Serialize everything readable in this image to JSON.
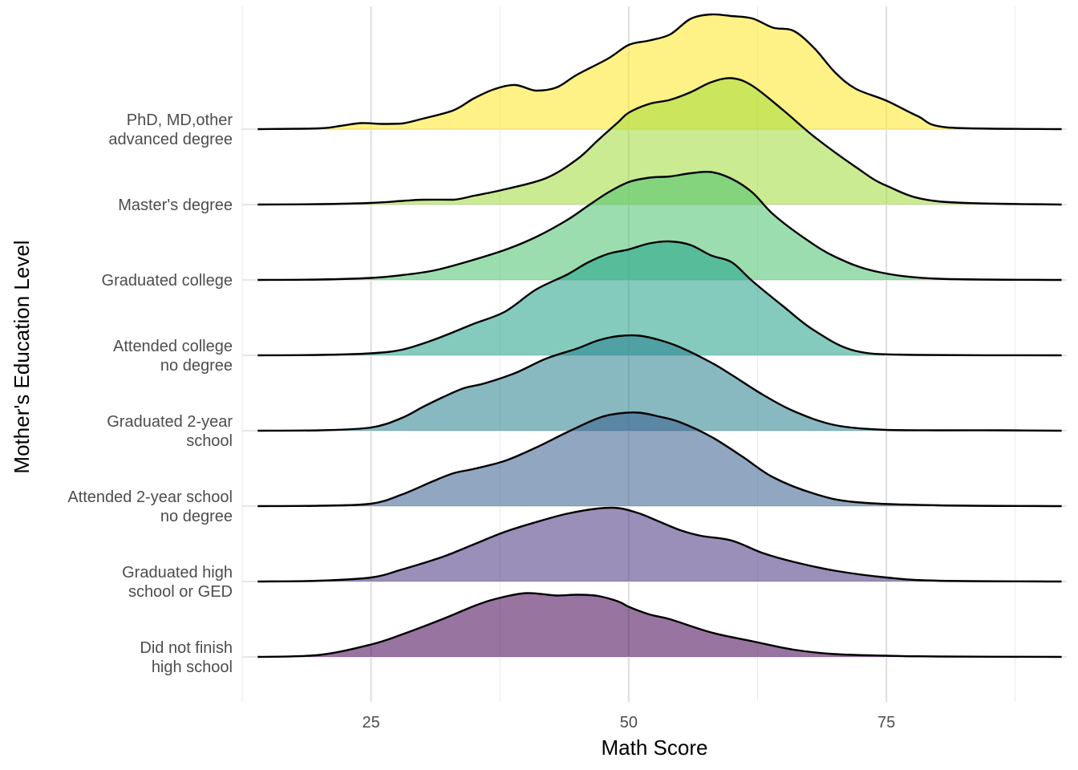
{
  "chart_data": {
    "type": "ridgeline",
    "title": "",
    "xlabel": "Math Score",
    "ylabel": "Mother's Education Level",
    "xlim": [
      12.5,
      92.5
    ],
    "x_ticks": [
      25,
      50,
      75
    ],
    "x_tick_labels": [
      "25",
      "50",
      "75"
    ],
    "grid": true,
    "legend": "none",
    "fill_opacity": 0.55,
    "categories": [
      "Did not finish\nhigh school",
      "Graduated high\nschool or GED",
      "Attended 2-year school\nno degree",
      "Graduated 2-year\nschool",
      "Attended college\nno degree",
      "Graduated college",
      "Master's degree",
      "PhD, MD,other\nadvanced degree"
    ],
    "series": [
      {
        "color": "#440154",
        "x": [
          14,
          20,
          25,
          28,
          32,
          35,
          37,
          40,
          43,
          45,
          47,
          49,
          50,
          52,
          54,
          58,
          62,
          66,
          70,
          75,
          80,
          92
        ],
        "density": [
          0,
          0.05,
          0.31,
          0.56,
          0.95,
          1.27,
          1.44,
          1.59,
          1.53,
          1.55,
          1.52,
          1.38,
          1.25,
          1.06,
          0.94,
          0.61,
          0.39,
          0.18,
          0.07,
          0.03,
          0.01,
          0
        ]
      },
      {
        "color": "#46337e",
        "x": [
          14,
          20,
          25,
          28,
          32,
          35,
          38,
          41,
          44,
          47,
          49,
          51,
          53,
          55,
          57,
          60,
          63,
          66,
          70,
          75,
          80,
          92
        ],
        "density": [
          0,
          0.02,
          0.1,
          0.3,
          0.62,
          0.93,
          1.24,
          1.48,
          1.69,
          1.82,
          1.83,
          1.7,
          1.49,
          1.28,
          1.14,
          1.02,
          0.71,
          0.49,
          0.27,
          0.1,
          0.02,
          0
        ]
      },
      {
        "color": "#365c8d",
        "x": [
          14,
          20,
          25,
          28,
          31,
          33,
          35,
          38,
          41,
          44,
          47,
          49,
          51,
          53,
          55,
          58,
          61,
          64,
          68,
          72,
          80,
          92
        ],
        "density": [
          0,
          0.01,
          0.06,
          0.29,
          0.62,
          0.82,
          0.93,
          1.13,
          1.46,
          1.84,
          2.19,
          2.31,
          2.33,
          2.23,
          2.09,
          1.73,
          1.24,
          0.72,
          0.31,
          0.1,
          0.02,
          0
        ]
      },
      {
        "color": "#277f8e",
        "x": [
          14,
          20,
          25,
          28,
          30,
          32,
          34,
          36,
          39,
          42,
          45,
          47,
          49,
          51,
          53,
          55,
          58,
          60,
          63,
          66,
          70,
          75,
          80,
          86,
          92
        ],
        "density": [
          0,
          0.01,
          0.08,
          0.32,
          0.59,
          0.84,
          1.06,
          1.18,
          1.44,
          1.8,
          2.05,
          2.25,
          2.36,
          2.37,
          2.26,
          2.08,
          1.7,
          1.39,
          0.9,
          0.49,
          0.14,
          0.02,
          0.01,
          0.01,
          0
        ]
      },
      {
        "color": "#1fa187",
        "x": [
          14,
          20,
          25,
          28,
          31,
          33,
          35,
          38,
          41,
          44,
          46,
          48,
          50,
          52,
          54,
          56,
          58,
          60,
          62,
          65,
          68,
          72,
          78,
          92
        ],
        "density": [
          0,
          0.01,
          0.05,
          0.14,
          0.38,
          0.58,
          0.79,
          1.09,
          1.64,
          2.01,
          2.31,
          2.53,
          2.64,
          2.79,
          2.84,
          2.75,
          2.49,
          2.32,
          1.85,
          1.22,
          0.62,
          0.11,
          0.01,
          0
        ]
      },
      {
        "color": "#4ac16d",
        "x": [
          14,
          20,
          25,
          28,
          31,
          34,
          38,
          41,
          44,
          46,
          48,
          50,
          52,
          54,
          56,
          58,
          60,
          62,
          64,
          67,
          70,
          74,
          80,
          92
        ],
        "density": [
          0,
          0.01,
          0.05,
          0.12,
          0.23,
          0.43,
          0.75,
          1.07,
          1.49,
          1.84,
          2.18,
          2.44,
          2.55,
          2.58,
          2.66,
          2.69,
          2.52,
          2.18,
          1.64,
          1.05,
          0.58,
          0.21,
          0.03,
          0
        ]
      },
      {
        "color": "#a0da39",
        "x": [
          14,
          20,
          25,
          28,
          30,
          33,
          35,
          38,
          42,
          45,
          47,
          49,
          50,
          52,
          54,
          56,
          58,
          60,
          62,
          65,
          68,
          72,
          75,
          80,
          92
        ],
        "density": [
          0,
          0.01,
          0.04,
          0.09,
          0.12,
          0.12,
          0.22,
          0.38,
          0.66,
          1.13,
          1.6,
          2.06,
          2.29,
          2.51,
          2.61,
          2.8,
          3.05,
          3.15,
          2.96,
          2.35,
          1.69,
          0.94,
          0.47,
          0.08,
          0
        ]
      },
      {
        "color": "#fde725",
        "x": [
          14,
          20,
          22,
          24,
          26,
          28,
          30,
          33,
          35,
          37,
          39,
          41,
          43,
          45,
          48,
          50,
          52,
          54,
          56,
          58,
          60,
          62,
          64,
          66,
          68,
          70,
          72,
          75,
          78,
          81,
          92
        ],
        "density": [
          0,
          0.02,
          0.08,
          0.15,
          0.13,
          0.14,
          0.26,
          0.47,
          0.77,
          1.0,
          1.1,
          0.96,
          1.04,
          1.36,
          1.76,
          2.1,
          2.21,
          2.36,
          2.75,
          2.86,
          2.82,
          2.76,
          2.53,
          2.45,
          2.02,
          1.42,
          1.01,
          0.71,
          0.33,
          0.04,
          0
        ]
      }
    ]
  }
}
